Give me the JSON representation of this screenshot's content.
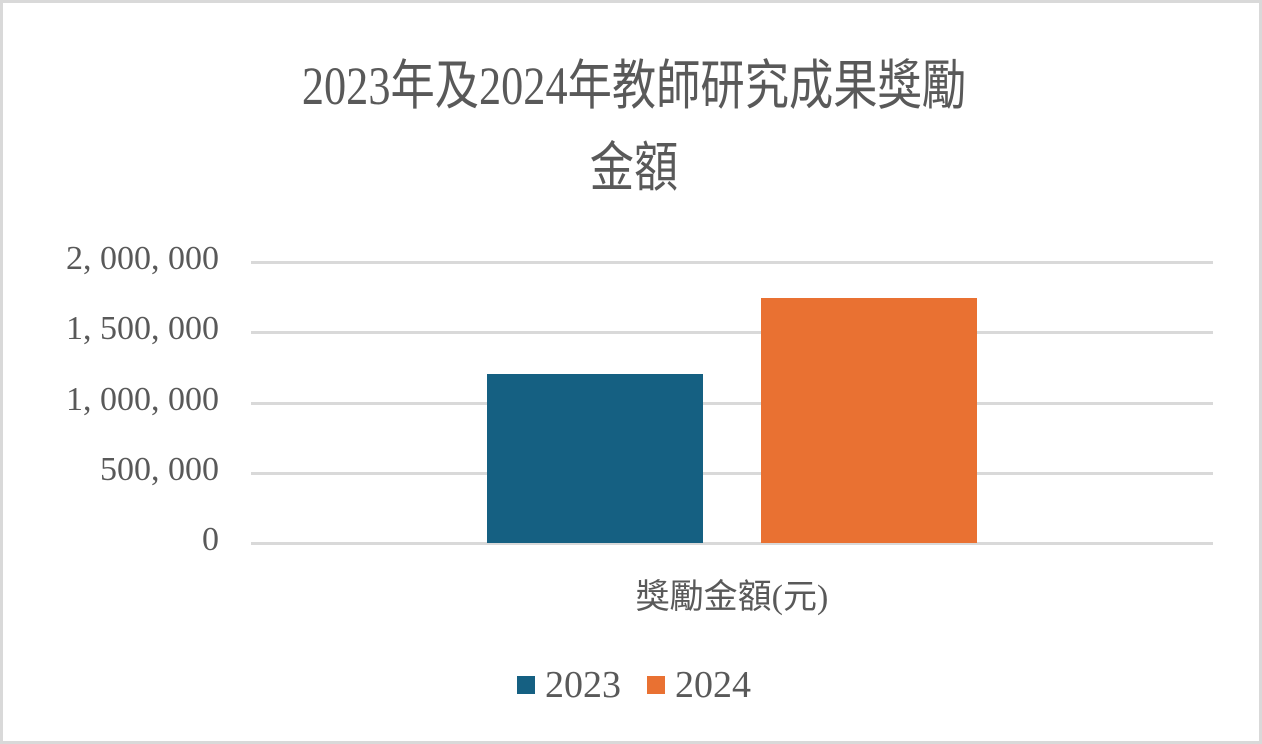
{
  "chart_data": {
    "type": "bar",
    "title": "2023年及2024年教師研究成果獎勵金額",
    "title_lines": [
      "2023年及2024年教師研究成果獎勵",
      "金額"
    ],
    "categories": [
      "獎勵金額(元)"
    ],
    "series": [
      {
        "name": "2023",
        "values": [
          1200000
        ],
        "color": "#156082"
      },
      {
        "name": "2024",
        "values": [
          1745000
        ],
        "color": "#E97132"
      }
    ],
    "xlabel": "",
    "ylabel": "",
    "ylim": [
      0,
      2000000
    ],
    "yticks": [
      "0",
      "500,000",
      "1,000,000",
      "1,500,000",
      "2,000,000"
    ],
    "ytick_labels_display": [
      "0",
      "500, 000",
      "1, 000, 000",
      "1, 500, 000",
      "2, 000, 000"
    ],
    "grid": true,
    "legend_position": "bottom"
  },
  "colors": {
    "series_2023": "#156082",
    "series_2024": "#E97132",
    "gridline": "#d9d9d9",
    "text": "#595959",
    "border": "#d9d9d9"
  }
}
